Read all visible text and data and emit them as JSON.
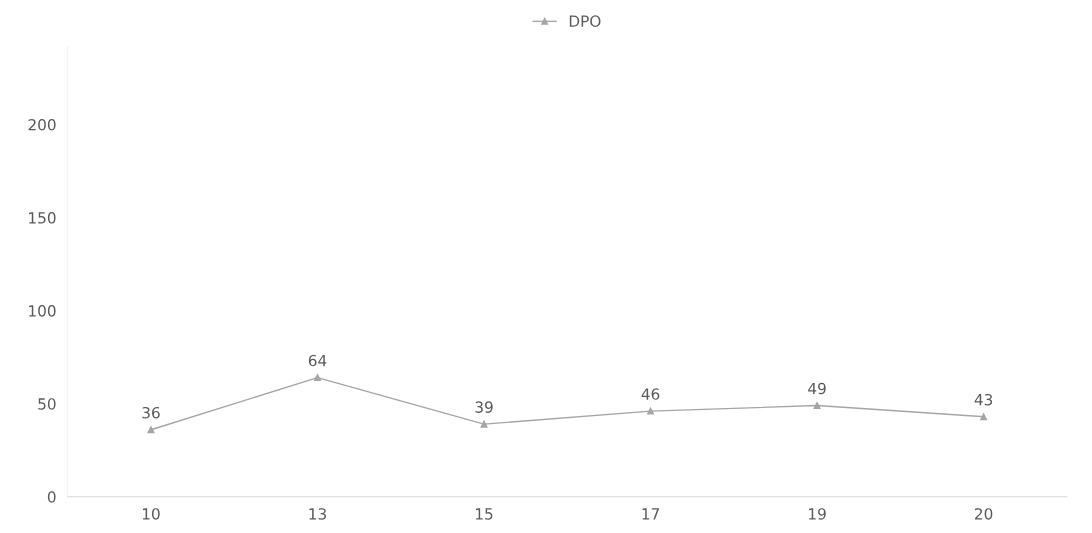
{
  "chart_data": {
    "type": "line",
    "categories": [
      "10",
      "13",
      "15",
      "17",
      "19",
      "20"
    ],
    "series": [
      {
        "name": "DPO",
        "color": "#a5a5a5",
        "values": [
          36,
          64,
          39,
          46,
          49,
          43
        ]
      }
    ],
    "ylim": [
      0,
      242
    ],
    "yticks": [
      0,
      50,
      100,
      150,
      200
    ],
    "grid": false,
    "legend": "top",
    "marker": "triangle",
    "line_style": "solid",
    "data_labels": true
  }
}
